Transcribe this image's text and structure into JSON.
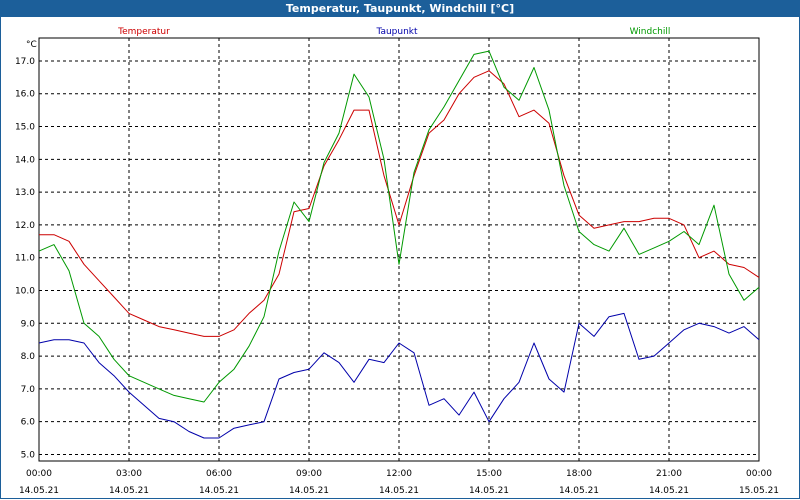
{
  "window": {
    "title": "Temperatur, Taupunkt, Windchill [°C]"
  },
  "colors": {
    "title_bar": "#1c5f9a",
    "grid": "#000000"
  },
  "chart_data": {
    "type": "line",
    "unit_label": "°C",
    "ylim": [
      4.8,
      17.7
    ],
    "yticks": [
      "5.0",
      "6.0",
      "7.0",
      "8.0",
      "9.0",
      "10.0",
      "11.0",
      "12.0",
      "13.0",
      "14.0",
      "15.0",
      "16.0",
      "17.0"
    ],
    "xlim": [
      0,
      24
    ],
    "xtick_times": [
      "00:00",
      "03:00",
      "06:00",
      "09:00",
      "12:00",
      "15:00",
      "18:00",
      "21:00",
      "00:00"
    ],
    "xtick_dates": [
      "14.05.21",
      "14.05.21",
      "14.05.21",
      "14.05.21",
      "14.05.21",
      "14.05.21",
      "14.05.21",
      "14.05.21",
      "15.05.21"
    ],
    "grid": true,
    "series": [
      {
        "name": "Temperatur",
        "color": "#cc0000",
        "x": [
          0,
          0.5,
          1,
          1.5,
          2,
          2.5,
          3,
          3.5,
          4,
          4.5,
          5,
          5.5,
          6,
          6.5,
          7,
          7.5,
          8,
          8.5,
          9,
          9.5,
          10,
          10.5,
          11,
          11.5,
          12,
          12.5,
          13,
          13.5,
          14,
          14.5,
          15,
          15.5,
          16,
          16.5,
          17,
          17.5,
          18,
          18.5,
          19,
          19.5,
          20,
          20.5,
          21,
          21.5,
          22,
          22.5,
          23,
          23.5,
          24
        ],
        "values": [
          11.7,
          11.7,
          11.5,
          10.8,
          10.3,
          9.8,
          9.3,
          9.1,
          8.9,
          8.8,
          8.7,
          8.6,
          8.6,
          8.8,
          9.3,
          9.7,
          10.5,
          12.4,
          12.5,
          13.8,
          14.6,
          15.5,
          15.5,
          13.5,
          12.0,
          13.5,
          14.8,
          15.2,
          16.0,
          16.5,
          16.7,
          16.3,
          15.3,
          15.5,
          15.1,
          13.5,
          12.3,
          11.9,
          12.0,
          12.1,
          12.1,
          12.2,
          12.2,
          12.0,
          11.0,
          11.2,
          10.8,
          10.7,
          10.4
        ]
      },
      {
        "name": "Taupunkt",
        "color": "#0000aa",
        "x": [
          0,
          0.5,
          1,
          1.5,
          2,
          2.5,
          3,
          3.5,
          4,
          4.5,
          5,
          5.5,
          6,
          6.5,
          7,
          7.5,
          8,
          8.5,
          9,
          9.5,
          10,
          10.5,
          11,
          11.5,
          12,
          12.5,
          13,
          13.5,
          14,
          14.5,
          15,
          15.5,
          16,
          16.5,
          17,
          17.5,
          18,
          18.5,
          19,
          19.5,
          20,
          20.5,
          21,
          21.5,
          22,
          22.5,
          23,
          23.5,
          24
        ],
        "values": [
          8.4,
          8.5,
          8.5,
          8.4,
          7.8,
          7.4,
          6.9,
          6.5,
          6.1,
          6.0,
          5.7,
          5.5,
          5.5,
          5.8,
          5.9,
          6.0,
          7.3,
          7.5,
          7.6,
          8.1,
          7.8,
          7.2,
          7.9,
          7.8,
          8.4,
          8.1,
          6.5,
          6.7,
          6.2,
          6.9,
          6.0,
          6.7,
          7.2,
          8.4,
          7.3,
          6.9,
          9.0,
          8.6,
          9.2,
          9.3,
          7.9,
          8.0,
          8.4,
          8.8,
          9.0,
          8.9,
          8.7,
          8.9,
          8.5
        ]
      },
      {
        "name": "Windchill",
        "color": "#009900",
        "x": [
          0,
          0.5,
          1,
          1.5,
          2,
          2.5,
          3,
          3.5,
          4,
          4.5,
          5,
          5.5,
          6,
          6.5,
          7,
          7.5,
          8,
          8.5,
          9,
          9.5,
          10,
          10.5,
          11,
          11.5,
          12,
          12.5,
          13,
          13.5,
          14,
          14.5,
          15,
          15.5,
          16,
          16.5,
          17,
          17.5,
          18,
          18.5,
          19,
          19.5,
          20,
          20.5,
          21,
          21.5,
          22,
          22.5,
          23,
          23.5,
          24
        ],
        "values": [
          11.2,
          11.4,
          10.6,
          9.0,
          8.6,
          7.9,
          7.4,
          7.2,
          7.0,
          6.8,
          6.7,
          6.6,
          7.2,
          7.6,
          8.3,
          9.2,
          11.2,
          12.7,
          12.1,
          13.9,
          14.8,
          16.6,
          15.9,
          14.0,
          10.8,
          13.6,
          14.9,
          15.6,
          16.4,
          17.2,
          17.3,
          16.2,
          15.8,
          16.8,
          15.5,
          13.2,
          11.8,
          11.4,
          11.2,
          11.9,
          11.1,
          11.3,
          11.5,
          11.8,
          11.4,
          12.6,
          10.5,
          9.7,
          10.1
        ]
      }
    ]
  }
}
